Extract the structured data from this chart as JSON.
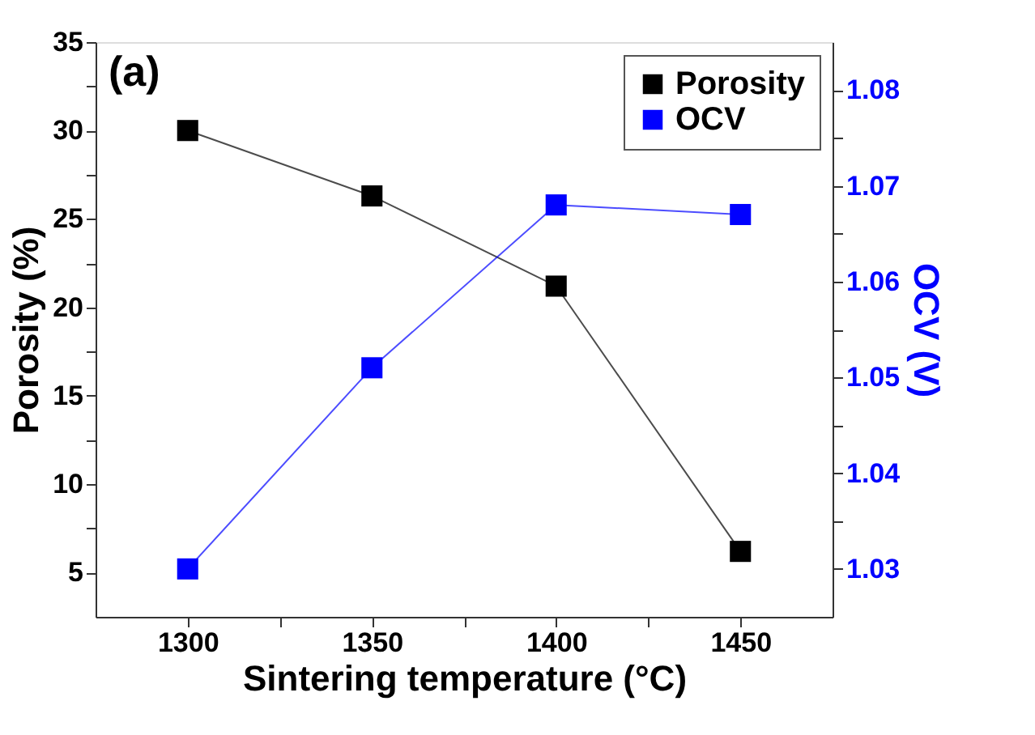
{
  "chart_data": {
    "type": "line",
    "xlabel": "Sintering temperature (°C)",
    "ylabel": "Porosity (%)",
    "y2label": "OCV (V)",
    "x": [
      1300,
      1350,
      1400,
      1450
    ],
    "series": [
      {
        "name": "Porosity",
        "color": "#000000",
        "values": [
          30.0,
          26.3,
          21.2,
          6.2
        ]
      },
      {
        "name": "OCV",
        "color": "#0000ff",
        "axis": "y2",
        "values": [
          1.03,
          1.051,
          1.068,
          1.067
        ]
      }
    ],
    "xlim": [
      1275,
      1475
    ],
    "xticks": [
      1300,
      {
        "value": 1325,
        "label": null
      },
      1350,
      {
        "value": 1375,
        "label": null
      },
      1400,
      {
        "value": 1425,
        "label": null
      },
      1450
    ],
    "ylim": [
      2.5,
      35
    ],
    "yticks": [
      5,
      {
        "value": 7.5,
        "label": null
      },
      10,
      {
        "value": 12.5,
        "label": null
      },
      15,
      {
        "value": 17.5,
        "label": null
      },
      20,
      {
        "value": 22.5,
        "label": null
      },
      25,
      {
        "value": 27.5,
        "label": null
      },
      30,
      {
        "value": 32.5,
        "label": null
      },
      35
    ],
    "y2lim": [
      1.025,
      1.085
    ],
    "y2ticks": [
      1.03,
      {
        "value": 1.035,
        "label": null
      },
      1.04,
      {
        "value": 1.045,
        "label": null
      },
      1.05,
      {
        "value": 1.055,
        "label": null
      },
      1.06,
      {
        "value": 1.065,
        "label": null
      },
      1.07,
      {
        "value": 1.075,
        "label": null
      },
      1.08
    ],
    "annotations": [
      "(a)"
    ],
    "legend": "top right",
    "marker": "square",
    "line_style": "solid",
    "grid": false
  }
}
